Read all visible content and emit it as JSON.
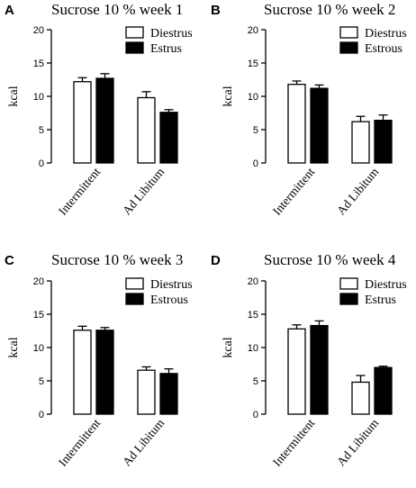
{
  "colors": {
    "diestrus": "#ffffff",
    "estrus": "#000000",
    "stroke": "#000000"
  },
  "chart_data": [
    {
      "type": "bar",
      "panel": "A",
      "title": "Sucrose 10 % week 1",
      "ylabel": "kcal",
      "ylim": [
        0,
        20
      ],
      "yticks": [
        "0",
        "5",
        "10",
        "15",
        "20"
      ],
      "categories": [
        "Intermittent",
        "Ad Libitum"
      ],
      "legend_position": "top-right",
      "series": [
        {
          "name": "Diestrus",
          "color": "#ffffff",
          "values": [
            12.2,
            9.8
          ],
          "errors": [
            0.6,
            0.9
          ]
        },
        {
          "name": "Estrus",
          "color": "#000000",
          "values": [
            12.7,
            7.6
          ],
          "errors": [
            0.7,
            0.4
          ]
        }
      ]
    },
    {
      "type": "bar",
      "panel": "B",
      "title": "Sucrose 10 % week 2",
      "ylabel": "kcal",
      "ylim": [
        0,
        20
      ],
      "yticks": [
        "0",
        "5",
        "10",
        "15",
        "20"
      ],
      "categories": [
        "Intermittent",
        "Ad Libitum"
      ],
      "legend_position": "top-right",
      "series": [
        {
          "name": "Diestrus",
          "color": "#ffffff",
          "values": [
            11.8,
            6.2
          ],
          "errors": [
            0.5,
            0.8
          ]
        },
        {
          "name": "Estrous",
          "color": "#000000",
          "values": [
            11.2,
            6.4
          ],
          "errors": [
            0.5,
            0.8
          ]
        }
      ]
    },
    {
      "type": "bar",
      "panel": "C",
      "title": "Sucrose 10 % week 3",
      "ylabel": "kcal",
      "ylim": [
        0,
        20
      ],
      "yticks": [
        "0",
        "5",
        "10",
        "15",
        "20"
      ],
      "categories": [
        "Intermittent",
        "Ad Libitum"
      ],
      "legend_position": "top-right",
      "series": [
        {
          "name": "Diestrus",
          "color": "#ffffff",
          "values": [
            12.6,
            6.6
          ],
          "errors": [
            0.6,
            0.5
          ]
        },
        {
          "name": "Estrous",
          "color": "#000000",
          "values": [
            12.6,
            6.1
          ],
          "errors": [
            0.4,
            0.7
          ]
        }
      ]
    },
    {
      "type": "bar",
      "panel": "D",
      "title": "Sucrose 10 % week 4",
      "ylabel": "kcal",
      "ylim": [
        0,
        20
      ],
      "yticks": [
        "0",
        "5",
        "10",
        "15",
        "20"
      ],
      "categories": [
        "Intermittent",
        "Ad Libitum"
      ],
      "legend_position": "top-right",
      "series": [
        {
          "name": "Diestrus",
          "color": "#ffffff",
          "values": [
            12.8,
            4.8
          ],
          "errors": [
            0.6,
            1.0
          ]
        },
        {
          "name": "Estrus",
          "color": "#000000",
          "values": [
            13.3,
            7.0
          ],
          "errors": [
            0.7,
            0.2
          ]
        }
      ]
    }
  ]
}
